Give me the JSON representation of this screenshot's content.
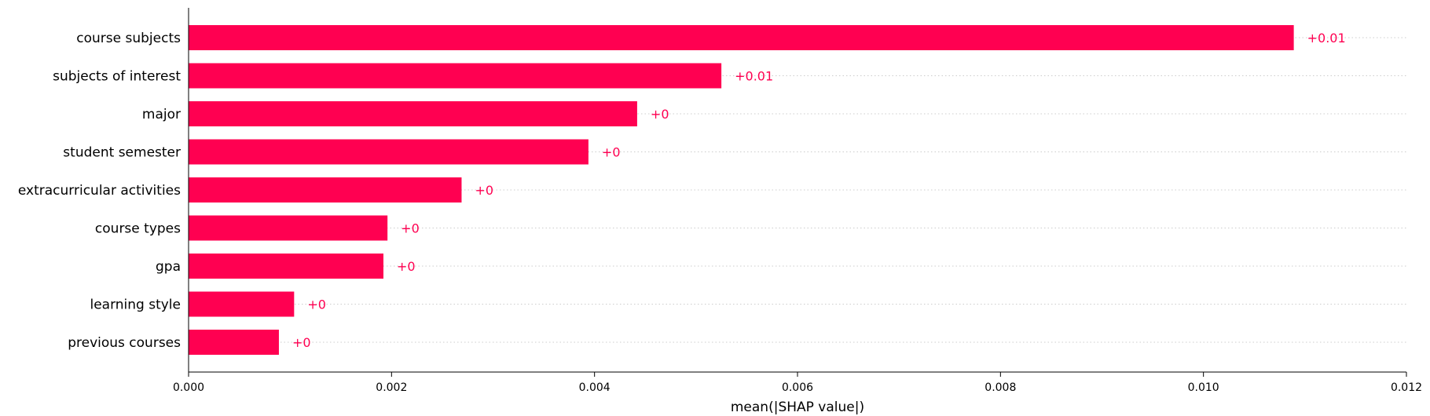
{
  "chart_data": {
    "type": "bar",
    "orientation": "horizontal",
    "categories": [
      "course subjects",
      "subjects of interest",
      "major",
      "student semester",
      "extracurricular activities",
      "course types",
      "gpa",
      "learning style",
      "previous courses"
    ],
    "values": [
      0.01089,
      0.00525,
      0.00442,
      0.00394,
      0.00269,
      0.00196,
      0.00192,
      0.00104,
      0.00089
    ],
    "value_labels": [
      "+0.01",
      "+0.01",
      "+0",
      "+0",
      "+0",
      "+0",
      "+0",
      "+0",
      "+0"
    ],
    "xlabel": "mean(|SHAP value|)",
    "ylabel": "",
    "title": "",
    "xlim": [
      0,
      0.012
    ],
    "xticks": [
      "0.000",
      "0.002",
      "0.004",
      "0.006",
      "0.008",
      "0.010",
      "0.012"
    ],
    "grid": "horizontal dotted",
    "bar_color": "#ff0051",
    "label_color": "#ff0051"
  }
}
